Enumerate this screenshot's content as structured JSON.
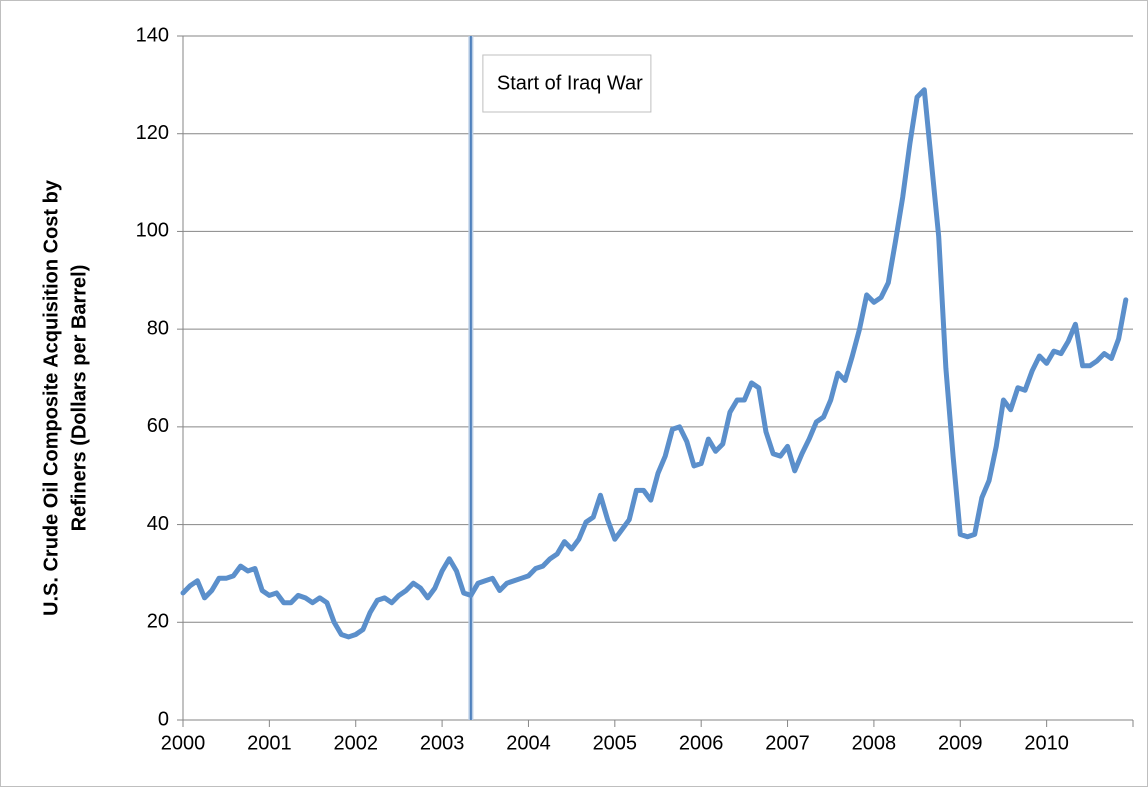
{
  "chart_data": {
    "type": "line",
    "y_label": [
      "U.S. Crude Oil Composite Acquisition Cost by",
      "Refiners (Dollars per Barrel)"
    ],
    "categories": [
      "2000",
      null,
      null,
      null,
      null,
      null,
      null,
      null,
      null,
      null,
      null,
      null,
      "2001",
      null,
      null,
      null,
      null,
      null,
      null,
      null,
      null,
      null,
      null,
      null,
      "2002",
      null,
      null,
      null,
      null,
      null,
      null,
      null,
      null,
      null,
      null,
      null,
      "2003",
      null,
      null,
      null,
      null,
      null,
      null,
      null,
      null,
      null,
      null,
      null,
      "2004",
      null,
      null,
      null,
      null,
      null,
      null,
      null,
      null,
      null,
      null,
      null,
      "2005",
      null,
      null,
      null,
      null,
      null,
      null,
      null,
      null,
      null,
      null,
      null,
      "2006",
      null,
      null,
      null,
      null,
      null,
      null,
      null,
      null,
      null,
      null,
      null,
      "2007",
      null,
      null,
      null,
      null,
      null,
      null,
      null,
      null,
      null,
      null,
      null,
      "2008",
      null,
      null,
      null,
      null,
      null,
      null,
      null,
      null,
      null,
      null,
      null,
      "2009",
      null,
      null,
      null,
      null,
      null,
      null,
      null,
      null,
      null,
      null,
      null,
      "2010",
      null,
      null,
      null,
      null,
      null,
      null,
      null,
      null,
      null,
      null,
      null
    ],
    "series": [
      {
        "name": "U.S. Crude Oil Composite Acquisition Cost by Refiners",
        "color": "#5b8fcb",
        "values": [
          26,
          27.5,
          28.5,
          25,
          26.5,
          29,
          29,
          29.5,
          31.5,
          30.5,
          31,
          26.5,
          25.5,
          26,
          24,
          24,
          25.5,
          25,
          24,
          25,
          24,
          20,
          17.5,
          17,
          17.5,
          18.5,
          22,
          24.5,
          25,
          24,
          25.5,
          26.5,
          28,
          27,
          25,
          27,
          30.5,
          33,
          30.5,
          26,
          25.5,
          28,
          28.5,
          29,
          26.5,
          28,
          28.5,
          29,
          29.5,
          31,
          31.5,
          33,
          34,
          36.5,
          35,
          37,
          40.5,
          41.5,
          46,
          41,
          37,
          39,
          41,
          47,
          47,
          45,
          50.5,
          54,
          59.5,
          60,
          57,
          52,
          52.5,
          57.5,
          55,
          56.5,
          63,
          65.5,
          65.5,
          69,
          68,
          59,
          54.5,
          54,
          56,
          51,
          54.5,
          57.5,
          61,
          62,
          65.5,
          71,
          69.5,
          74.5,
          80,
          87,
          85.5,
          86.5,
          89.5,
          98,
          107,
          118,
          127.5,
          129,
          114,
          99,
          72,
          54,
          38,
          37.5,
          38,
          45.5,
          49,
          56,
          65.5,
          63.5,
          68,
          67.5,
          71.5,
          74.5,
          73,
          75.5,
          75,
          77.5,
          81,
          72.5,
          72.5,
          73.5,
          75,
          74,
          78,
          86
        ]
      }
    ],
    "ylim": [
      0,
      140
    ],
    "yticks": [
      0,
      20,
      40,
      60,
      80,
      100,
      120,
      140
    ],
    "grid": true,
    "annotation": {
      "text": "Start of Iraq War",
      "category_index": 40,
      "color": "#4f81bd"
    }
  }
}
